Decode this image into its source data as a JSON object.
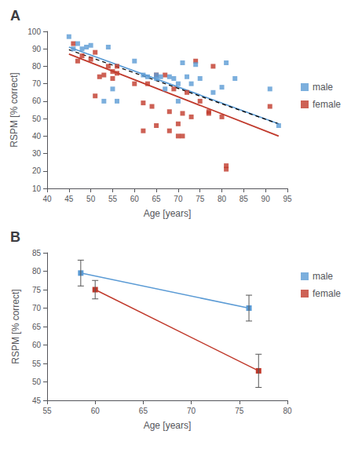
{
  "chart_data": [
    {
      "type": "scatter",
      "title": "A",
      "xlabel": "Age [years]",
      "ylabel": "RSPM [% correct]",
      "xlim": [
        40,
        95
      ],
      "xticks": [
        40,
        45,
        50,
        55,
        60,
        65,
        70,
        75,
        80,
        85,
        90,
        95
      ],
      "ylim": [
        10,
        100
      ],
      "yticks": [
        10,
        20,
        30,
        40,
        50,
        60,
        70,
        80,
        90,
        100
      ],
      "grid": false,
      "legend": "right",
      "series": [
        {
          "name": "male",
          "type": "scatter",
          "marker": "square",
          "color": "#5b9bd5",
          "x": [
            45,
            46,
            47,
            48,
            49,
            50,
            53,
            54,
            55,
            56,
            60,
            62,
            63,
            65,
            65,
            66,
            67,
            68,
            69,
            70,
            70,
            71,
            72,
            73,
            74,
            75,
            78,
            80,
            81,
            83,
            91,
            93
          ],
          "values": [
            97,
            90,
            93,
            90,
            91,
            92,
            60,
            91,
            67,
            60,
            83,
            75,
            74,
            73,
            75,
            74,
            67,
            74,
            73,
            70,
            60,
            82,
            74,
            70,
            81,
            73,
            65,
            68,
            82,
            73,
            67,
            46
          ]
        },
        {
          "name": "female",
          "type": "scatter",
          "marker": "square",
          "color": "#c0392b",
          "x": [
            46,
            47,
            48,
            50,
            51,
            51,
            52,
            53,
            54,
            55,
            55,
            56,
            56,
            60,
            62,
            62,
            63,
            64,
            65,
            65,
            67,
            68,
            68,
            69,
            70,
            70,
            71,
            71,
            72,
            73,
            74,
            75,
            77,
            77,
            78,
            80,
            81,
            81,
            91
          ],
          "values": [
            93,
            83,
            86,
            84,
            88,
            63,
            74,
            75,
            80,
            77,
            73,
            80,
            76,
            70,
            59,
            43,
            70,
            57,
            75,
            46,
            75,
            54,
            43,
            67,
            47,
            40,
            53,
            40,
            65,
            51,
            83,
            60,
            54,
            53,
            80,
            51,
            21,
            23,
            57
          ]
        },
        {
          "type": "line",
          "line_style": "solid",
          "color": "#5b9bd5",
          "x": [
            45,
            93
          ],
          "values": [
            91,
            47
          ]
        },
        {
          "type": "line",
          "line_style": "solid",
          "color": "#c0392b",
          "x": [
            45,
            93
          ],
          "values": [
            87,
            40
          ]
        },
        {
          "type": "line",
          "line_style": "dashed",
          "color": "black",
          "x": [
            45,
            93
          ],
          "values": [
            89.5,
            47
          ]
        }
      ]
    },
    {
      "type": "line",
      "title": "B",
      "xlabel": "Age [years]",
      "ylabel": "RSPM [% correct]",
      "xlim": [
        55,
        80
      ],
      "xticks": [
        55,
        60,
        65,
        70,
        75,
        80
      ],
      "ylim": [
        45,
        85
      ],
      "yticks": [
        45,
        50,
        55,
        60,
        65,
        70,
        75,
        80,
        85
      ],
      "grid": false,
      "legend": "right",
      "series": [
        {
          "name": "male",
          "type": "line",
          "marker": "square",
          "line_style": "solid",
          "color": "#5b9bd5",
          "x": [
            58.5,
            76.0
          ],
          "values": [
            79.5,
            70.0
          ],
          "yerr": [
            3.5,
            3.5
          ]
        },
        {
          "name": "female",
          "type": "line",
          "marker": "square",
          "line_style": "solid",
          "color": "#c0392b",
          "x": [
            60.0,
            77.0
          ],
          "values": [
            75.0,
            53.0
          ],
          "yerr": [
            2.5,
            4.5
          ]
        }
      ]
    }
  ]
}
